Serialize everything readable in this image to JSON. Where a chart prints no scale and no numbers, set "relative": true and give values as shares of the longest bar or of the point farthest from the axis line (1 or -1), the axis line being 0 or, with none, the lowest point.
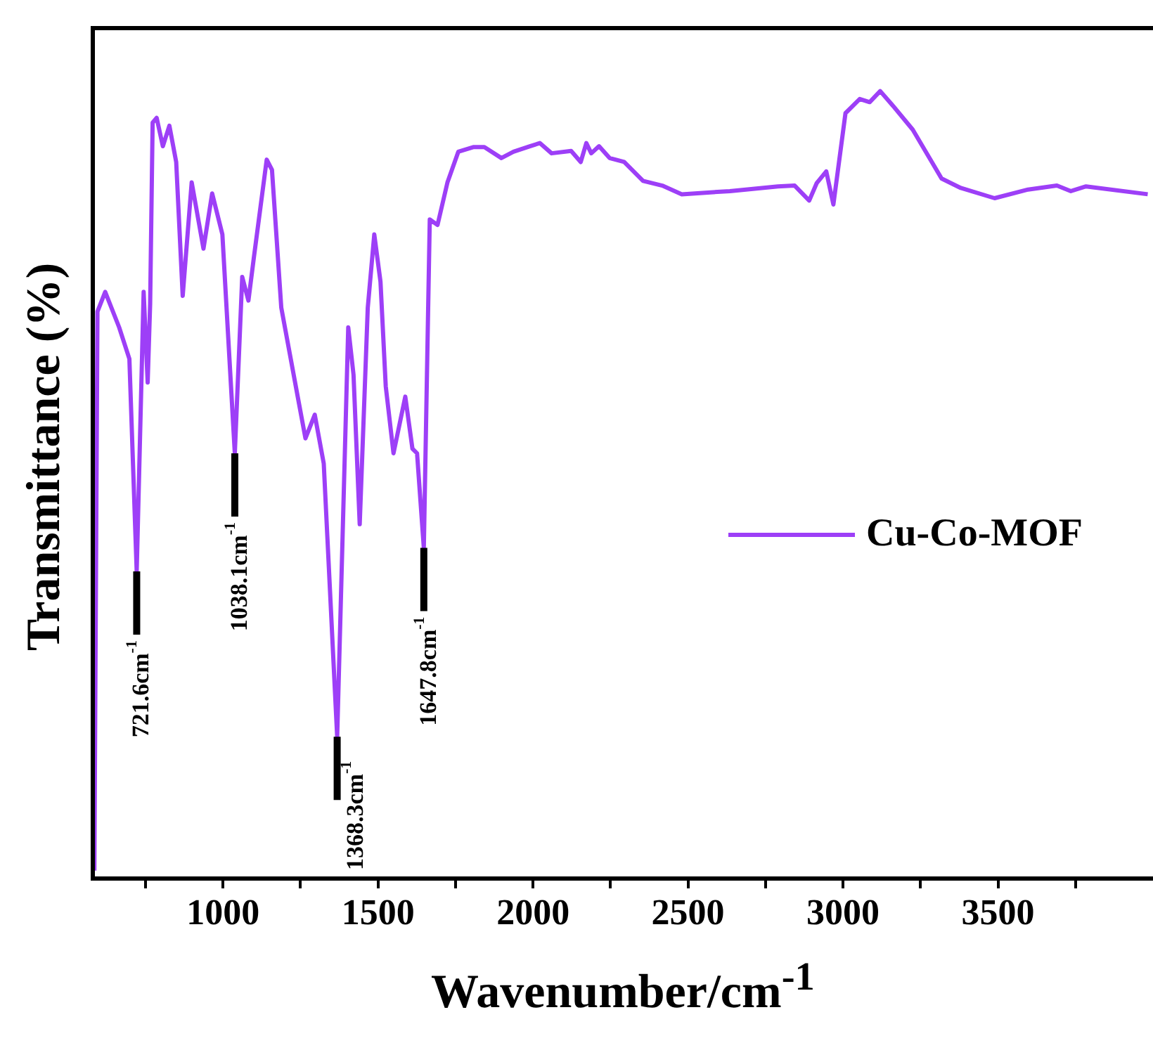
{
  "chart_data": {
    "type": "line",
    "xlabel": "Wavenumber/cm$^{-1}$",
    "ylabel": "Transmittance (%)",
    "relative": true,
    "xlim": [
      580,
      4000
    ],
    "xticks": [
      {
        "value": 750,
        "label": null
      },
      1000,
      {
        "value": 1250,
        "label": null
      },
      1500,
      {
        "value": 1750,
        "label": null
      },
      2000,
      {
        "value": 2250,
        "label": null
      },
      2500,
      {
        "value": 2750,
        "label": null
      },
      3000,
      {
        "value": 3250,
        "label": null
      },
      3500,
      {
        "value": 3750,
        "label": null
      }
    ],
    "grid": false,
    "legend": "right",
    "marker": "none",
    "line_style": "solid",
    "series": [
      {
        "name": "Cu-Co-MOF",
        "color": "#9d3ff7",
        "x": [
          585,
          595,
          620,
          665,
          698,
          721.6,
          744,
          757,
          765,
          773,
          786,
          806,
          827,
          849,
          870,
          899,
          937,
          965,
          998,
          1038.1,
          1062,
          1082,
          1099,
          1141,
          1158,
          1188,
          1241,
          1266,
          1296,
          1325,
          1368.3,
          1404,
          1421,
          1441,
          1467,
          1488,
          1508,
          1525,
          1550,
          1588,
          1611,
          1626,
          1647.8,
          1667,
          1692,
          1724,
          1759,
          1809,
          1843,
          1898,
          1937,
          1990,
          2022,
          2060,
          2123,
          2154,
          2172,
          2188,
          2213,
          2247,
          2294,
          2355,
          2417,
          2480,
          2635,
          2790,
          2844,
          2891,
          2915,
          2946,
          2969,
          3008,
          3054,
          3086,
          3120,
          3162,
          3225,
          3318,
          3380,
          3489,
          3597,
          3690,
          3735,
          3784,
          3983
        ],
        "values": [
          0.01,
          0.72,
          0.745,
          0.7,
          0.66,
          0.39,
          0.745,
          0.63,
          0.73,
          0.96,
          0.966,
          0.93,
          0.956,
          0.91,
          0.74,
          0.884,
          0.8,
          0.87,
          0.818,
          0.54,
          0.764,
          0.734,
          0.787,
          0.913,
          0.9,
          0.725,
          0.612,
          0.559,
          0.589,
          0.527,
          0.18,
          0.7,
          0.64,
          0.45,
          0.725,
          0.818,
          0.758,
          0.625,
          0.54,
          0.612,
          0.546,
          0.54,
          0.42,
          0.837,
          0.83,
          0.884,
          0.923,
          0.929,
          0.929,
          0.915,
          0.923,
          0.93,
          0.934,
          0.921,
          0.924,
          0.91,
          0.934,
          0.921,
          0.93,
          0.915,
          0.91,
          0.886,
          0.88,
          0.869,
          0.873,
          0.879,
          0.88,
          0.861,
          0.883,
          0.898,
          0.856,
          0.972,
          0.99,
          0.986,
          1,
          0.981,
          0.951,
          0.889,
          0.877,
          0.864,
          0.875,
          0.88,
          0.873,
          0.879,
          0.869
        ]
      }
    ],
    "annotations": [
      {
        "text": "721.6cm$^{-1}$",
        "x": 721.6,
        "y": 0.39
      },
      {
        "text": "1038.1cm$^{-1}$",
        "x": 1038.1,
        "y": 0.54
      },
      {
        "text": "1368.3cm$^{-1}$",
        "x": 1368.3,
        "y": 0.18
      },
      {
        "text": "1647.8cm$^{-1}$",
        "x": 1647.8,
        "y": 0.42
      }
    ]
  }
}
